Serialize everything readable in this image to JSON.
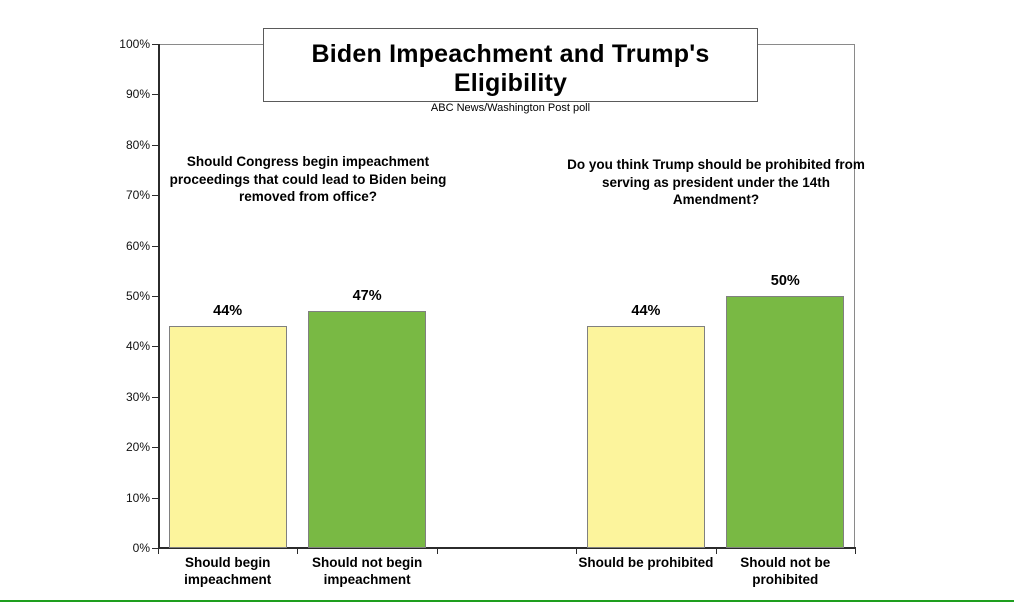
{
  "chart_data": {
    "type": "bar",
    "title": "Biden Impeachment and Trump's Eligibility",
    "subtitle": "ABC News/Washington Post poll",
    "ylim": [
      0,
      100
    ],
    "yticks": [
      "0%",
      "10%",
      "20%",
      "30%",
      "40%",
      "50%",
      "60%",
      "70%",
      "80%",
      "90%",
      "100%"
    ],
    "grid": false,
    "legend": "none",
    "value_label_suffix": "%",
    "groups": [
      {
        "question": "Should Congress begin impeachment proceedings that could lead to Biden being removed from office?",
        "bars": [
          {
            "label": "Should begin impeachment",
            "value": 44,
            "color": "#FCF49C"
          },
          {
            "label": "Should not begin impeachment",
            "value": 47,
            "color": "#79B944"
          }
        ]
      },
      {
        "question": "Do you think Trump should be prohibited from serving as president under the 14th Amendment?",
        "bars": [
          {
            "label": "Should be prohibited",
            "value": 44,
            "color": "#FCF49C"
          },
          {
            "label": "Should not be prohibited",
            "value": 50,
            "color": "#79B944"
          }
        ]
      }
    ]
  },
  "colors": {
    "bar_yellow": "#FCF49C",
    "bar_green": "#79B944",
    "bar_border": "#808080",
    "axis": "#2B2B2B",
    "plot_border": "#8A8A8A",
    "bottom_rule_green": "#1E9E1E"
  }
}
